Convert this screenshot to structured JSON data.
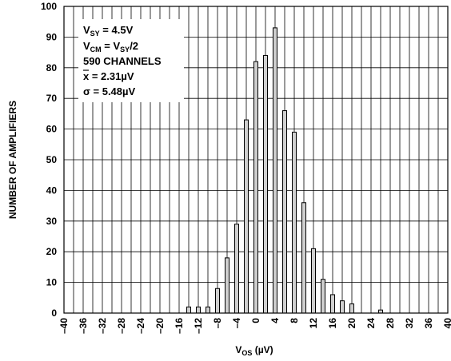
{
  "chart_data": {
    "type": "bar",
    "ylabel": "NUMBER OF AMPLIFIERS",
    "xlabel_main": "V",
    "xlabel_sub": "OS",
    "xlabel_tail": " (µV)",
    "xlim": [
      -40,
      40
    ],
    "ylim": [
      0,
      100
    ],
    "x_ticks": [
      "–40",
      "–36",
      "–32",
      "–28",
      "–24",
      "–20",
      "–16",
      "–12",
      "–8",
      "–4",
      "0",
      "4",
      "8",
      "12",
      "16",
      "20",
      "24",
      "28",
      "32",
      "36",
      "40"
    ],
    "y_ticks": [
      "0",
      "10",
      "20",
      "30",
      "40",
      "50",
      "60",
      "70",
      "80",
      "90",
      "100"
    ],
    "grid": true,
    "bin_centers": [
      -14,
      -12,
      -10,
      -8,
      -6,
      -4,
      -2,
      0,
      2,
      4,
      6,
      8,
      10,
      12,
      14,
      16,
      18,
      20,
      22,
      24,
      26
    ],
    "values": [
      2,
      2,
      2,
      8,
      18,
      29,
      63,
      82,
      84,
      93,
      66,
      59,
      36,
      21,
      11,
      6,
      4,
      3,
      0,
      0,
      1
    ],
    "annotation": {
      "line1_main": "V",
      "line1_sub": "SY",
      "line1_tail": " = 4.5V",
      "line2_main": "V",
      "line2_sub": "CM",
      "line2_mid": " = V",
      "line2_sub2": "SY",
      "line2_tail": "/2",
      "line3": "590 CHANNELS",
      "line4": "x = 2.31µV",
      "line5": "σ = 5.48µV"
    }
  }
}
